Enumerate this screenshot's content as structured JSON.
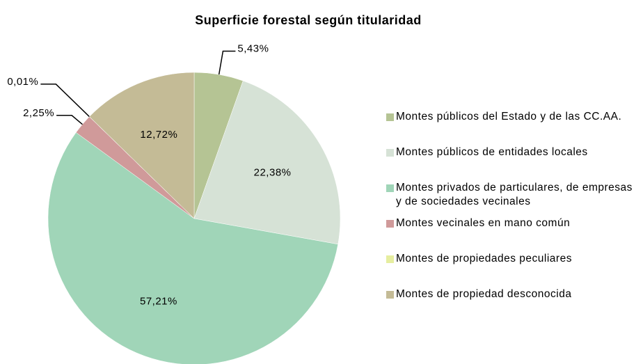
{
  "chart_data": {
    "type": "pie",
    "title": "Superficie forestal según titularidad",
    "categories": [
      "Montes públicos del Estado y de las CC.AA.",
      "Montes públicos de entidades locales",
      "Montes privados de particulares, de empresas y de sociedades vecinales",
      "Montes vecinales en mano común",
      "Montes de propiedades peculiares",
      "Montes de propiedad desconocida"
    ],
    "values": [
      5.43,
      22.38,
      57.21,
      2.25,
      0.01,
      12.72
    ],
    "value_labels": [
      "5,43%",
      "22,38%",
      "57,21%",
      "2,25%",
      "0,01%",
      "12,72%"
    ],
    "colors": [
      "#b5c494",
      "#d6e2d6",
      "#a0d5b8",
      "#d09a9a",
      "#e6eea0",
      "#c4bb96"
    ],
    "legend": "right"
  }
}
